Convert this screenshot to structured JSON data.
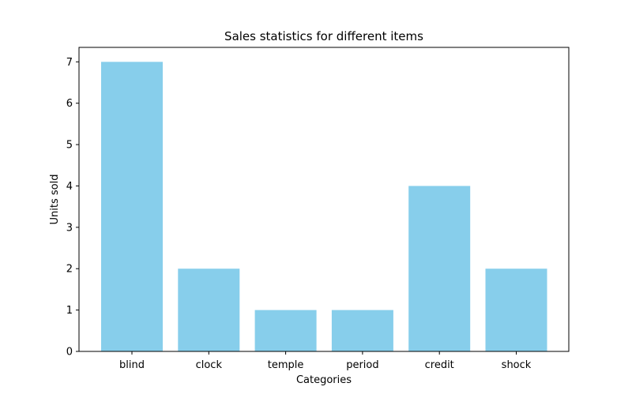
{
  "chart_data": {
    "type": "bar",
    "title": "Sales statistics for different items",
    "xlabel": "Categories",
    "ylabel": "Units sold",
    "categories": [
      "blind",
      "clock",
      "temple",
      "period",
      "credit",
      "shock"
    ],
    "values": [
      7,
      2,
      1,
      1,
      4,
      2
    ],
    "ylim": [
      0,
      7.35
    ],
    "yticks": [
      "0",
      "1",
      "2",
      "3",
      "4",
      "5",
      "6",
      "7"
    ],
    "bar_color": "#87CEEB",
    "grid": false,
    "legend": "none"
  }
}
